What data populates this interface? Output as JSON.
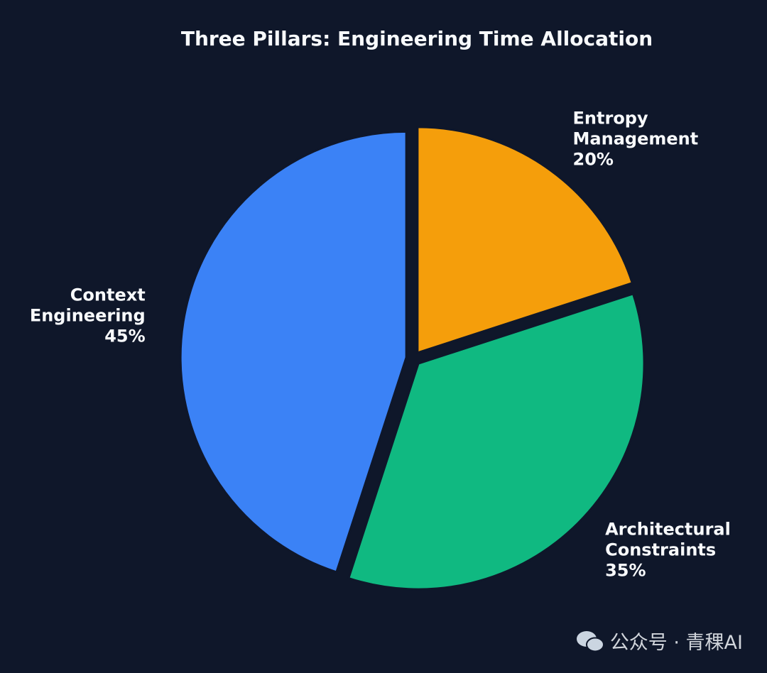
{
  "chart_data": {
    "type": "pie",
    "title": "Three Pillars: Engineering Time Allocation",
    "categories": [
      "Entropy Management",
      "Architectural Constraints",
      "Context Engineering"
    ],
    "values": [
      20,
      35,
      45
    ],
    "value_labels": [
      "20%",
      "35%",
      "45%"
    ],
    "colors": [
      "#f59e0b",
      "#10b981",
      "#3b82f6"
    ]
  },
  "watermark": "公众号 · 青稞AI"
}
